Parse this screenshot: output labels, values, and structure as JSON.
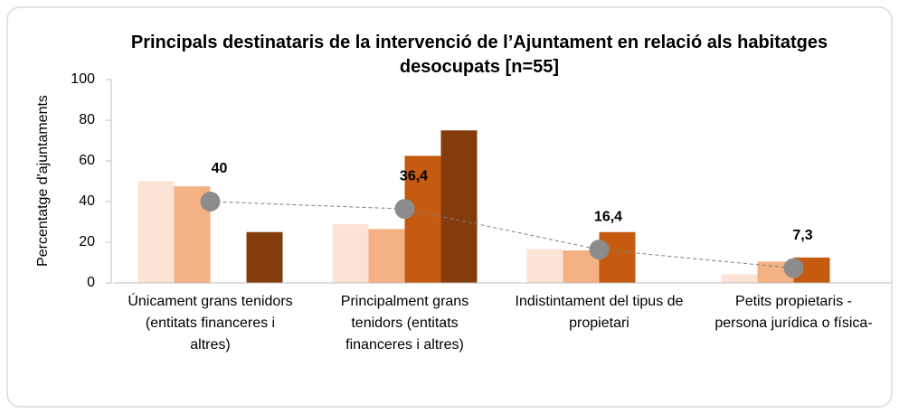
{
  "chart_data": {
    "type": "bar",
    "title": "Principals destinataris de la intervenció de l’Ajuntament en relació als habitatges desocupats [n=55]",
    "y_label": "Percentatge d'ajuntaments",
    "categories": [
      "Únicament grans tenidors (entitats financeres i altres)",
      "Principalment grans tenidors (entitats financeres i altres)",
      "Indistintament del tipus de propietari",
      "Petits propietaris - persona jurídica o física-"
    ],
    "series": [
      {
        "color": "#fbe3d6",
        "values": [
          50,
          29,
          16.7,
          4.2
        ]
      },
      {
        "color": "#f4b183",
        "values": [
          47.5,
          26.5,
          16,
          10.5
        ]
      },
      {
        "color": "#c55a11",
        "values": [
          0,
          62.5,
          25,
          12.5
        ]
      },
      {
        "color": "#843c0c",
        "values": [
          25,
          75,
          0,
          0
        ]
      }
    ],
    "line": {
      "type": "line",
      "color": "#8c8c8c",
      "values": [
        40,
        36.4,
        16.4,
        7.3
      ],
      "value_labels": [
        "40",
        "36,4",
        "16,4",
        "7,3"
      ]
    },
    "ylim": [
      0,
      100
    ],
    "yticks": [
      0,
      20,
      40,
      60,
      80,
      100
    ]
  }
}
